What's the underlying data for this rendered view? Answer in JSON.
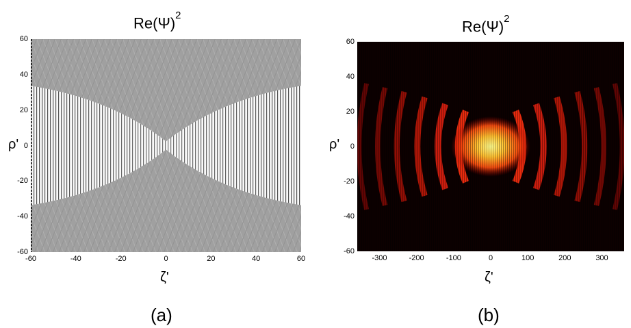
{
  "chart_data": [
    {
      "type": "heatmap",
      "panel": "(a)",
      "title": "Re(Ψ)",
      "title_sup": "2",
      "xlabel": "ζ'",
      "ylabel": "ρ'",
      "xlim": [
        -60,
        60
      ],
      "ylim": [
        -60,
        60
      ],
      "xticks": [
        "-60",
        "-40",
        "-20",
        "0",
        "20",
        "40",
        "60"
      ],
      "xtick_values": [
        -60,
        -40,
        -20,
        0,
        20,
        40,
        60
      ],
      "yticks": [
        "60",
        "40",
        "20",
        "0",
        "-20",
        "-40",
        "-60"
      ],
      "ytick_values": [
        60,
        40,
        20,
        0,
        -20,
        -40,
        -60
      ],
      "colormap": "gray",
      "colors": {
        "background": "#a0a0a0",
        "light": "#ffffff",
        "dark": "#202020"
      }
    },
    {
      "type": "heatmap",
      "panel": "(b)",
      "title": "Re(Ψ)",
      "title_sup": "2",
      "xlabel": "ζ'",
      "ylabel": "ρ'",
      "xlim": [
        -360,
        360
      ],
      "ylim": [
        -60,
        60
      ],
      "xticks": [
        "-300",
        "-200",
        "-100",
        "0",
        "100",
        "200",
        "300"
      ],
      "xtick_values": [
        -300,
        -200,
        -100,
        0,
        100,
        200,
        300
      ],
      "yticks": [
        "60",
        "40",
        "20",
        "0",
        "-20",
        "-40",
        "-60"
      ],
      "ytick_values": [
        60,
        40,
        20,
        0,
        -20,
        -40,
        -60
      ],
      "colormap": "hot",
      "colors": {
        "background": "#0c0000",
        "low": "#5a0000",
        "mid": "#e02010",
        "high": "#ffff90"
      }
    }
  ],
  "captions": {
    "a": "(a)",
    "b": "(b)"
  }
}
